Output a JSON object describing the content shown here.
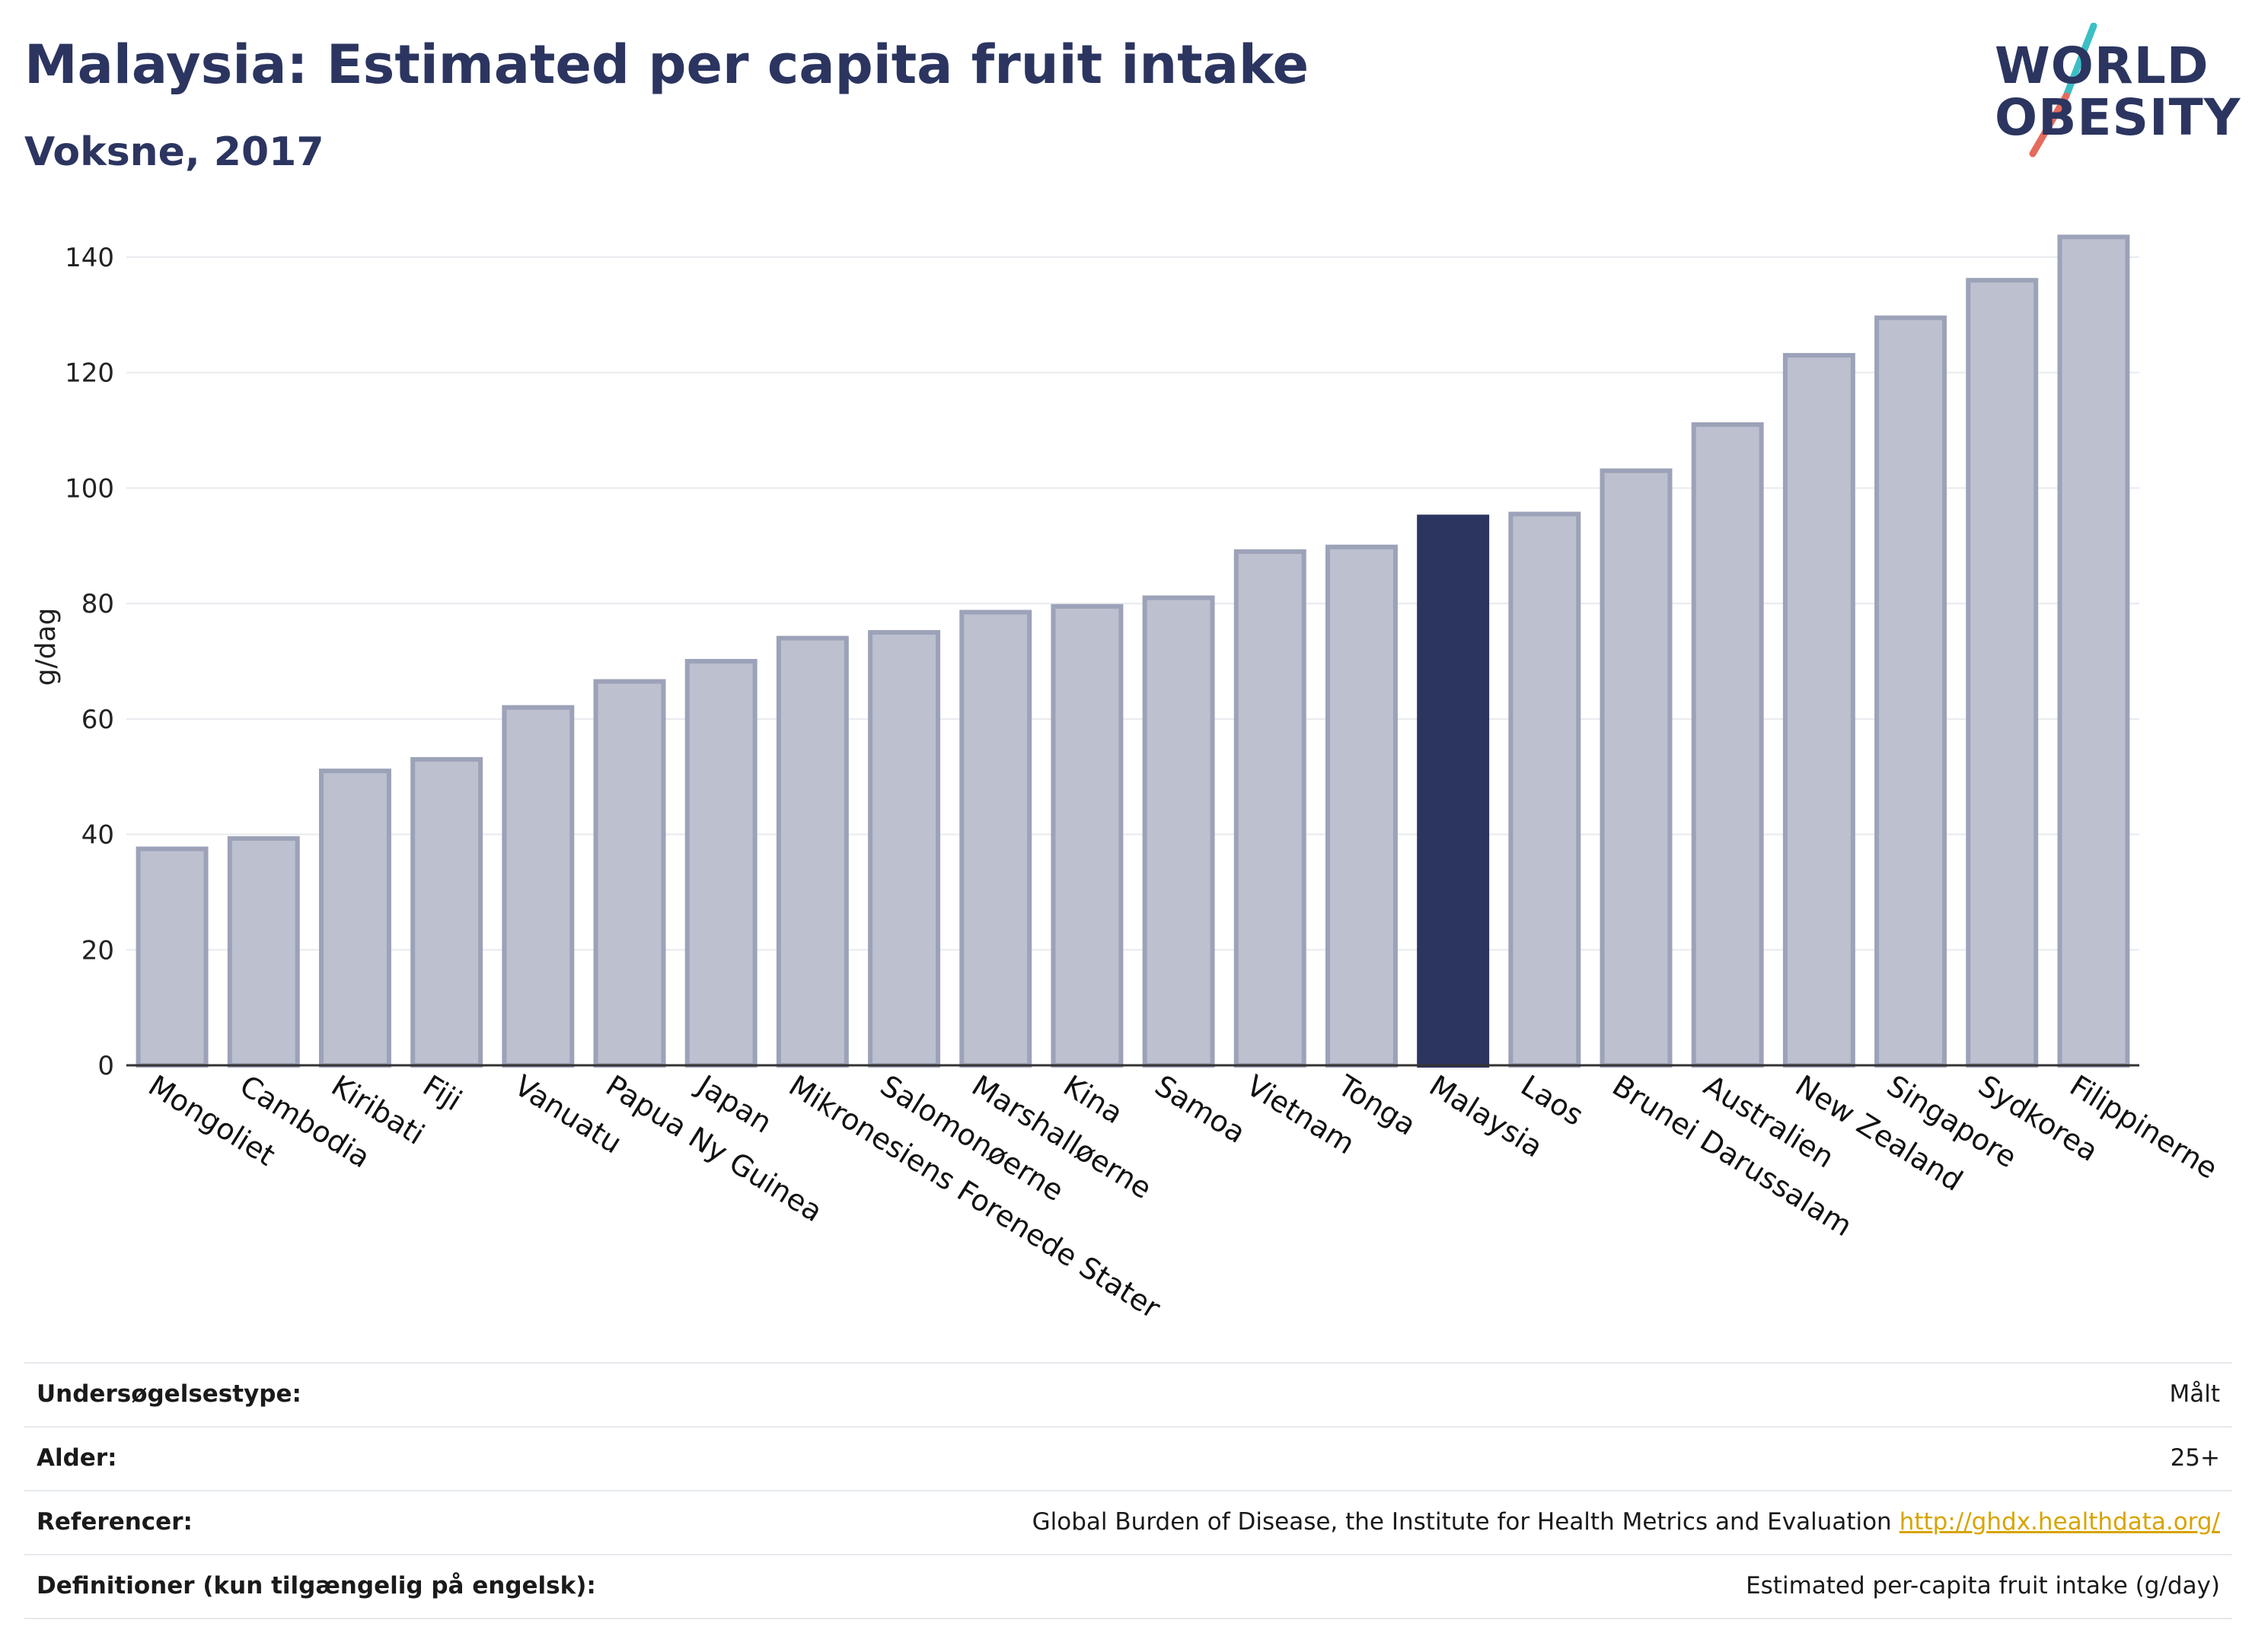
{
  "header": {
    "title": "Malaysia: Estimated per capita fruit intake",
    "subtitle": "Voksne, 2017"
  },
  "logo": {
    "line1": "WORLD",
    "line2": "OBESITY",
    "colors": {
      "text": "#2b3560",
      "slash_top": "#3bbfc4",
      "slash_bottom": "#e56b5d"
    }
  },
  "chart_data": {
    "type": "bar",
    "title": "",
    "xlabel": "",
    "ylabel": "g/dag",
    "ylim": [
      0,
      145
    ],
    "yticks": [
      0,
      20,
      40,
      60,
      80,
      100,
      120,
      140
    ],
    "grid": true,
    "highlight": "Malaysia",
    "colors": {
      "bar": "#bcc0cf",
      "bar_border": "#9ca2b8",
      "highlight": "#2b3560",
      "grid": "#e8eaee",
      "axis": "#333333"
    },
    "categories": [
      "Mongoliet",
      "Cambodia",
      "Kiribati",
      "Fiji",
      "Vanuatu",
      "Papua Ny Guinea",
      "Japan",
      "Mikronesiens Forenede Stater",
      "Salomonøerne",
      "Marshalløerne",
      "Kina",
      "Samoa",
      "Vietnam",
      "Tonga",
      "Malaysia",
      "Laos",
      "Brunei Darussalam",
      "Australien",
      "New Zealand",
      "Singapore",
      "Sydkorea",
      "Filippinerne"
    ],
    "values": [
      37.5,
      39.3,
      51,
      53,
      62,
      66.5,
      70,
      74,
      75,
      78.5,
      79.5,
      81,
      89,
      89.8,
      95,
      95.5,
      103,
      111,
      123,
      129.5,
      136,
      143.5
    ]
  },
  "metadata": [
    {
      "label": "Undersøgelsestype:",
      "value": "Målt"
    },
    {
      "label": "Alder:",
      "value": "25+"
    },
    {
      "label": "Referencer:",
      "value": "Global Burden of Disease, the Institute for Health Metrics and Evaluation",
      "link": "http://ghdx.healthdata.org/"
    },
    {
      "label": "Definitioner (kun tilgængelig på engelsk):",
      "value": "Estimated per-capita fruit intake (g/day)"
    }
  ]
}
